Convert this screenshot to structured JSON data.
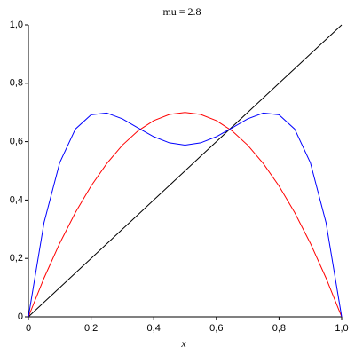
{
  "chart_data": {
    "type": "line",
    "title": "mu = 2.8",
    "x_label": "x",
    "x": [
      0,
      0.05,
      0.1,
      0.15,
      0.2,
      0.25,
      0.3,
      0.35,
      0.4,
      0.45,
      0.5,
      0.55,
      0.6,
      0.65,
      0.7,
      0.75,
      0.8,
      0.85,
      0.9,
      0.95,
      1
    ],
    "series": [
      {
        "color": "#000000",
        "values": [
          0,
          0.05,
          0.1,
          0.15,
          0.2,
          0.25,
          0.3,
          0.35,
          0.4,
          0.45,
          0.5,
          0.55,
          0.6,
          0.65,
          0.7,
          0.75,
          0.8,
          0.85,
          0.9,
          0.95,
          1
        ]
      },
      {
        "color": "#ff0000",
        "values": [
          0,
          0.133,
          0.252,
          0.357,
          0.448,
          0.525,
          0.588,
          0.637,
          0.672,
          0.693,
          0.7,
          0.693,
          0.672,
          0.637,
          0.588,
          0.525,
          0.448,
          0.357,
          0.252,
          0.133,
          0
        ]
      },
      {
        "color": "#0000ff",
        "values": [
          0,
          0.323,
          0.528,
          0.643,
          0.692,
          0.698,
          0.678,
          0.647,
          0.617,
          0.596,
          0.588,
          0.596,
          0.617,
          0.647,
          0.678,
          0.698,
          0.692,
          0.643,
          0.528,
          0.323,
          0
        ]
      }
    ],
    "xlim": [
      0,
      1
    ],
    "ylim": [
      0,
      1
    ],
    "xticks": [
      0,
      {
        "value": 0.2,
        "label": "0,2"
      },
      {
        "value": 0.4,
        "label": "0,4"
      },
      {
        "value": 0.6,
        "label": "0,6"
      },
      {
        "value": 0.8,
        "label": "0,8"
      },
      {
        "value": 1,
        "label": "1,0"
      }
    ],
    "yticks": [
      0,
      {
        "value": 0.2,
        "label": "0,2"
      },
      {
        "value": 0.4,
        "label": "0,4"
      },
      {
        "value": 0.6,
        "label": "0,6"
      },
      {
        "value": 0.8,
        "label": "0,8"
      },
      {
        "value": 1,
        "label": "1,0"
      }
    ]
  }
}
